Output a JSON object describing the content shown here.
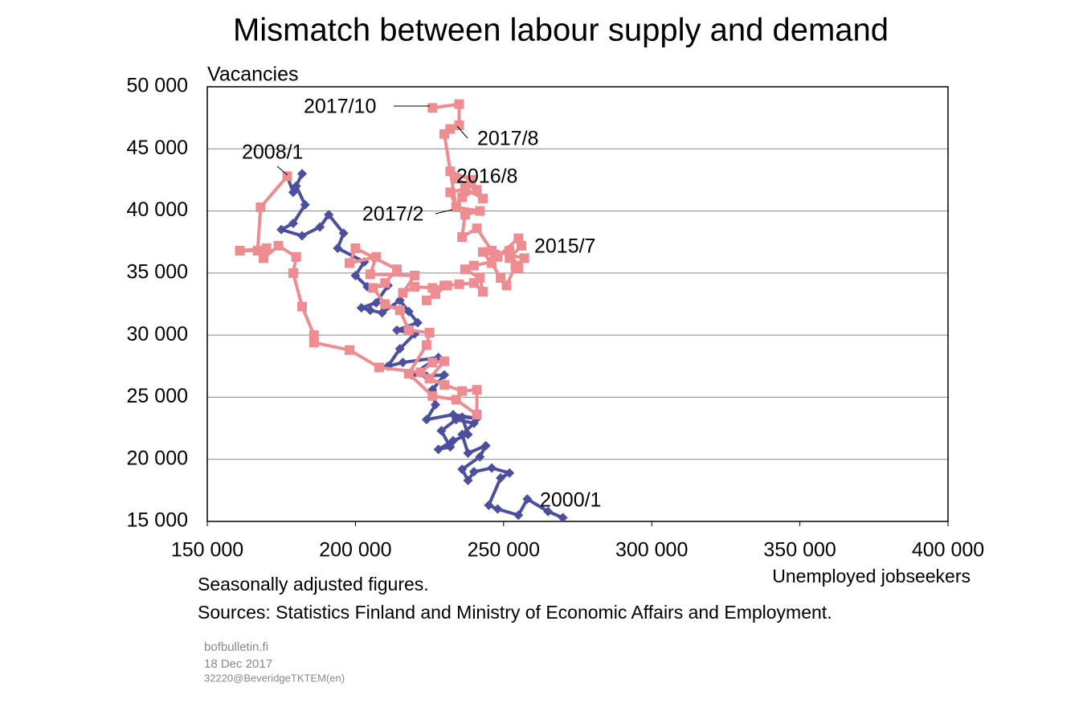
{
  "chart_data": {
    "type": "line",
    "title": "Mismatch between labour supply and demand",
    "ylabel": "Vacancies",
    "xlabel": "Unemployed jobseekers",
    "notes": [
      "Seasonally adjusted figures.",
      "Sources: Statistics Finland and Ministry of Economic Affairs and Employment."
    ],
    "footer": [
      "bofbulletin.fi",
      "18 Dec 2017",
      "32220@BeveridgeTKTEM(en)"
    ],
    "annotations": [
      "2017/10",
      "2017/8",
      "2016/8",
      "2017/2",
      "2015/7",
      "2008/1",
      "2000/1"
    ],
    "xlim": [
      150000,
      400000
    ],
    "ylim": [
      15000,
      50000
    ],
    "xticks": [
      {
        "value": 150000,
        "label": "150 000"
      },
      {
        "value": 200000,
        "label": "200 000"
      },
      {
        "value": 250000,
        "label": "250 000"
      },
      {
        "value": 300000,
        "label": "300 000"
      },
      {
        "value": 350000,
        "label": "350 000"
      },
      {
        "value": 400000,
        "label": "400 000"
      }
    ],
    "yticks": [
      {
        "value": 15000,
        "label": "15 000"
      },
      {
        "value": 20000,
        "label": "20 000"
      },
      {
        "value": 25000,
        "label": "25 000"
      },
      {
        "value": 30000,
        "label": "30 000"
      },
      {
        "value": 35000,
        "label": "35 000"
      },
      {
        "value": 40000,
        "label": "40 000"
      },
      {
        "value": 45000,
        "label": "45 000"
      },
      {
        "value": 50000,
        "label": "50 000"
      }
    ],
    "grid": true,
    "series": [
      {
        "color": "#4b4f9e",
        "marker": "diamond",
        "x": [
          270000,
          265000,
          258000,
          255000,
          248000,
          245000,
          249000,
          252000,
          246000,
          240000,
          238000,
          236000,
          242000,
          244000,
          238000,
          236000,
          240000,
          234000,
          229000,
          232000,
          228000,
          233000,
          238000,
          236000,
          241000,
          233000,
          224000,
          227000,
          226000,
          230000,
          224000,
          219000,
          228000,
          216000,
          211000,
          215000,
          220000,
          214000,
          221000,
          218000,
          215000,
          209000,
          205000,
          202000,
          207000,
          211000,
          204000,
          200000,
          203000,
          194000,
          196000,
          191000,
          188000,
          182000,
          175000,
          179000,
          183000,
          180000,
          182000,
          179000,
          177000
        ],
        "values": [
          15300,
          15800,
          16800,
          15500,
          16000,
          16300,
          18500,
          18900,
          19300,
          19000,
          18300,
          19200,
          20200,
          21100,
          20500,
          22000,
          22900,
          23200,
          22300,
          21000,
          20800,
          21500,
          22000,
          23400,
          23300,
          23600,
          23200,
          24400,
          25600,
          26800,
          26700,
          26800,
          28200,
          27800,
          27500,
          28900,
          30100,
          30400,
          31000,
          31900,
          32800,
          31800,
          32000,
          32200,
          32600,
          34000,
          33900,
          34800,
          35900,
          37000,
          38200,
          39700,
          38700,
          38000,
          38500,
          39000,
          40500,
          42000,
          43000,
          41500,
          42800
        ]
      },
      {
        "color": "#ef8c91",
        "marker": "square",
        "x": [
          177000,
          168000,
          167000,
          161000,
          170000,
          169000,
          174000,
          180000,
          179000,
          182000,
          186000,
          186000,
          198000,
          208000,
          222000,
          226000,
          230000,
          225000,
          230000,
          236000,
          241000,
          241000,
          234000,
          226000,
          218000,
          224000,
          225000,
          218000,
          215000,
          210000,
          206000,
          210000,
          214000,
          200000,
          198000,
          207000,
          205000,
          220000,
          216000,
          220000,
          226000,
          230000,
          224000,
          227000,
          231000,
          235000,
          240000,
          243000,
          242000,
          237000,
          240000,
          246000,
          248000,
          255000,
          256000,
          252000,
          254000,
          251000,
          249000,
          246000,
          243000,
          247000,
          252000,
          255000,
          257000,
          246000,
          241000,
          236000,
          237000,
          242000,
          234000,
          232000,
          237000,
          243000,
          239000,
          232000,
          234000,
          241000,
          236000,
          234000,
          230000,
          232000,
          235000,
          235000,
          226000
        ],
        "values": [
          42800,
          40300,
          36800,
          36800,
          37000,
          36200,
          37200,
          36300,
          35000,
          32300,
          30000,
          29400,
          28800,
          27400,
          27000,
          27800,
          27900,
          26500,
          26000,
          25500,
          25600,
          23600,
          24800,
          25100,
          26900,
          29200,
          30200,
          30400,
          32000,
          32500,
          33800,
          34200,
          35300,
          37000,
          35800,
          36300,
          34900,
          34800,
          33400,
          33900,
          33800,
          34000,
          32800,
          33300,
          34000,
          34100,
          34200,
          33500,
          34600,
          35300,
          35600,
          35900,
          36300,
          37800,
          37200,
          36200,
          35600,
          34000,
          34600,
          35800,
          36700,
          36500,
          36800,
          35400,
          36200,
          36800,
          38600,
          37900,
          39700,
          40000,
          40300,
          41500,
          41800,
          41000,
          42500,
          43200,
          42600,
          41700,
          41100,
          40300,
          46200,
          46600,
          46900,
          48600,
          48300
        ]
      }
    ]
  }
}
